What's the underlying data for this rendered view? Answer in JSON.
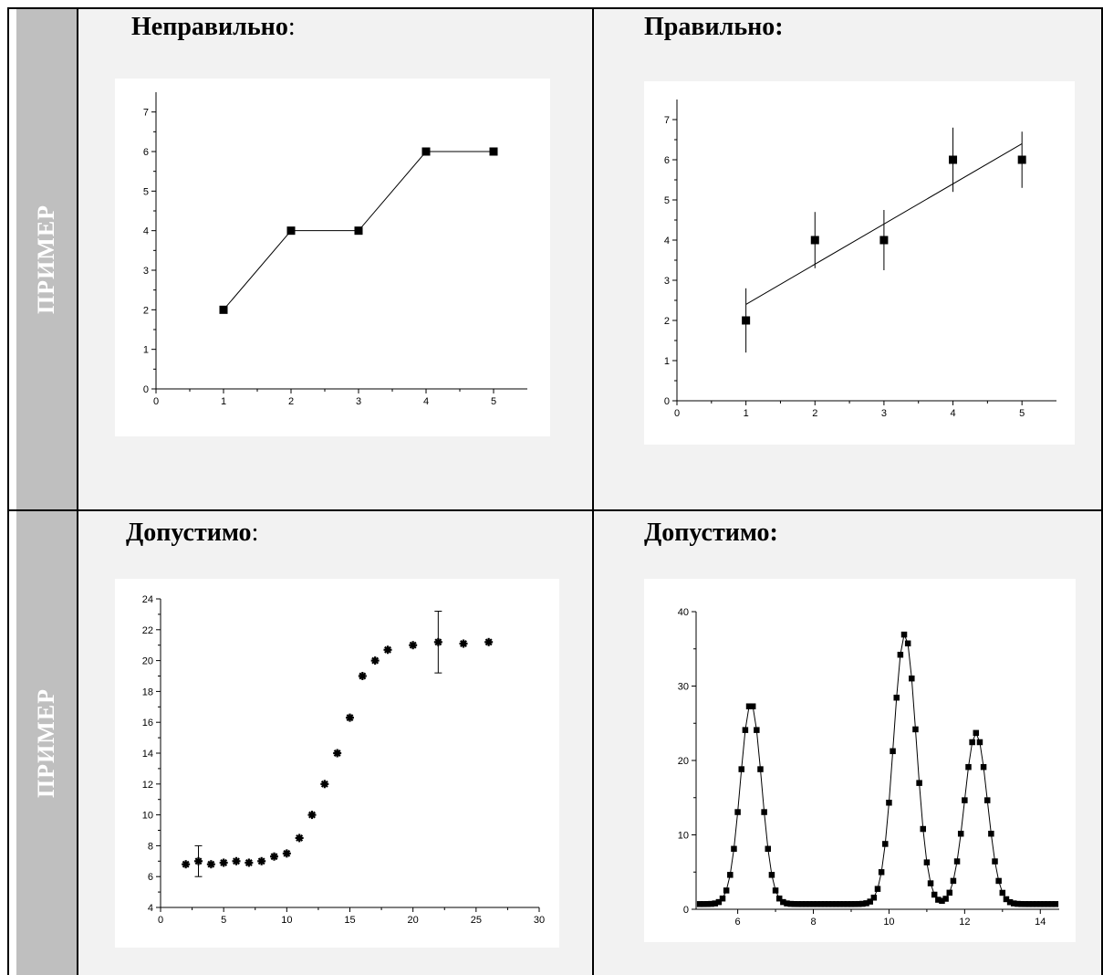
{
  "side_label": "ПРИМЕР",
  "cells": [
    {
      "heading": "Неправильно",
      "suffix": ":"
    },
    {
      "heading": "Правильно:",
      "suffix": ""
    },
    {
      "heading": "Допустимо",
      "suffix": ":"
    },
    {
      "heading": "Допустимо:",
      "suffix": ""
    }
  ],
  "chart_data": [
    {
      "type": "line",
      "x": [
        1,
        2,
        3,
        4,
        5
      ],
      "y": [
        2,
        4,
        4,
        6,
        6
      ],
      "xlim": [
        0,
        5.5
      ],
      "ylim": [
        0,
        7.5
      ],
      "xticks": [
        0,
        1,
        2,
        3,
        4,
        5
      ],
      "yticks": [
        0,
        1,
        2,
        3,
        4,
        5,
        6,
        7
      ],
      "marker": "square",
      "grid": false
    },
    {
      "type": "scatter",
      "x": [
        1,
        2,
        3,
        4,
        5
      ],
      "y": [
        2,
        4,
        4,
        6,
        6
      ],
      "yerr": [
        0.8,
        0.7,
        0.75,
        0.8,
        0.7
      ],
      "fit_line": {
        "x": [
          1,
          5
        ],
        "y": [
          2.4,
          6.4
        ]
      },
      "xlim": [
        0,
        5.5
      ],
      "ylim": [
        0,
        7.5
      ],
      "xticks": [
        0,
        1,
        2,
        3,
        4,
        5
      ],
      "yticks": [
        0,
        1,
        2,
        3,
        4,
        5,
        6,
        7
      ],
      "marker": "square",
      "grid": false
    },
    {
      "type": "scatter",
      "x": [
        2,
        3,
        4,
        5,
        6,
        7,
        8,
        9,
        10,
        11,
        12,
        13,
        14,
        15,
        16,
        17,
        18,
        20,
        22,
        24,
        26
      ],
      "y": [
        6.8,
        7.0,
        6.8,
        6.9,
        7.0,
        6.9,
        7.0,
        7.3,
        7.5,
        8.5,
        10.0,
        12.0,
        14.0,
        16.3,
        19.0,
        20.0,
        20.7,
        21.0,
        21.2,
        21.1,
        21.2
      ],
      "errorbars": [
        {
          "x": 3,
          "y": 7.0,
          "err": 1.0
        },
        {
          "x": 22,
          "y": 21.2,
          "err": 2.0
        }
      ],
      "xlim": [
        0,
        30
      ],
      "ylim": [
        4,
        24
      ],
      "xticks": [
        0,
        5,
        10,
        15,
        20,
        25,
        30
      ],
      "yticks": [
        4,
        6,
        8,
        10,
        12,
        14,
        16,
        18,
        20,
        22,
        24
      ],
      "marker": "asterisk",
      "grid": false
    },
    {
      "type": "line",
      "x_range": [
        5.0,
        14.4
      ],
      "peaks": [
        {
          "center": 6.35,
          "height": 27,
          "width": 0.28
        },
        {
          "center": 10.42,
          "height": 36.3,
          "width": 0.3
        },
        {
          "center": 12.3,
          "height": 23,
          "width": 0.3
        }
      ],
      "baseline": 0.7,
      "xlim": [
        4.9,
        14.5
      ],
      "ylim": [
        0,
        40
      ],
      "xticks": [
        6,
        8,
        10,
        12,
        14
      ],
      "yticks": [
        0,
        10,
        20,
        30,
        40
      ],
      "marker": "square",
      "grid": false
    }
  ]
}
